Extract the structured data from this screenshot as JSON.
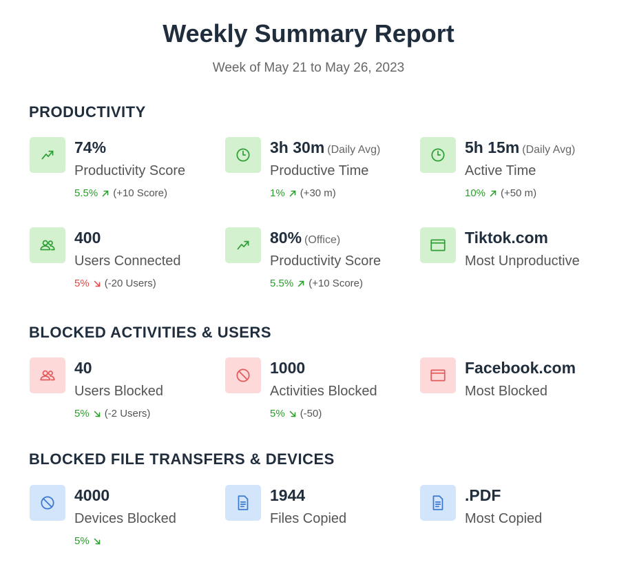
{
  "header": {
    "title": "Weekly Summary Report",
    "subtitle": "Week of May 21 to May 26, 2023"
  },
  "sections": [
    {
      "title": "PRODUCTIVITY",
      "rows": [
        [
          {
            "icon": "trend",
            "tone": "green",
            "value": "74%",
            "label": "Productivity Score",
            "change": "5.5%",
            "trend": "up",
            "change_tone": "green",
            "delta": "(+10 Score)"
          },
          {
            "icon": "clock",
            "tone": "green",
            "value": "3h 30m",
            "note": "(Daily Avg)",
            "label": "Productive Time",
            "change": "1%",
            "trend": "up",
            "change_tone": "green",
            "delta": "(+30 m)"
          },
          {
            "icon": "clock",
            "tone": "green",
            "value": "5h 15m",
            "note": "(Daily Avg)",
            "label": "Active Time",
            "change": "10%",
            "trend": "up",
            "change_tone": "green",
            "delta": "(+50 m)"
          }
        ],
        [
          {
            "icon": "users",
            "tone": "green",
            "value": "400",
            "label": "Users Connected",
            "change": "5%",
            "trend": "down",
            "change_tone": "red",
            "delta": "(-20 Users)"
          },
          {
            "icon": "trend",
            "tone": "green",
            "value": "80%",
            "note": "(Office)",
            "label": "Productivity Score",
            "change": "5.5%",
            "trend": "up",
            "change_tone": "green",
            "delta": "(+10 Score)"
          },
          {
            "icon": "window",
            "tone": "green",
            "value": "Tiktok.com",
            "label": "Most Unproductive"
          }
        ]
      ]
    },
    {
      "title": "BLOCKED ACTIVITIES & USERS",
      "rows": [
        [
          {
            "icon": "users",
            "tone": "red",
            "value": "40",
            "label": "Users Blocked",
            "change": "5%",
            "trend": "down",
            "change_tone": "green",
            "delta": "(-2 Users)"
          },
          {
            "icon": "block",
            "tone": "red",
            "value": "1000",
            "label": "Activities Blocked",
            "change": "5%",
            "trend": "down",
            "change_tone": "green",
            "delta": "(-50)"
          },
          {
            "icon": "window",
            "tone": "red",
            "value": "Facebook.com",
            "label": "Most Blocked"
          }
        ]
      ]
    },
    {
      "title": "BLOCKED FILE TRANSFERS & DEVICES",
      "rows": [
        [
          {
            "icon": "block",
            "tone": "blue",
            "value": "4000",
            "label": "Devices Blocked",
            "change": "5%",
            "trend": "down",
            "change_tone": "green"
          },
          {
            "icon": "file",
            "tone": "blue",
            "value": "1944",
            "label": "Files Copied"
          },
          {
            "icon": "file",
            "tone": "blue",
            "value": ".PDF",
            "label": "Most Copied"
          }
        ]
      ]
    }
  ]
}
